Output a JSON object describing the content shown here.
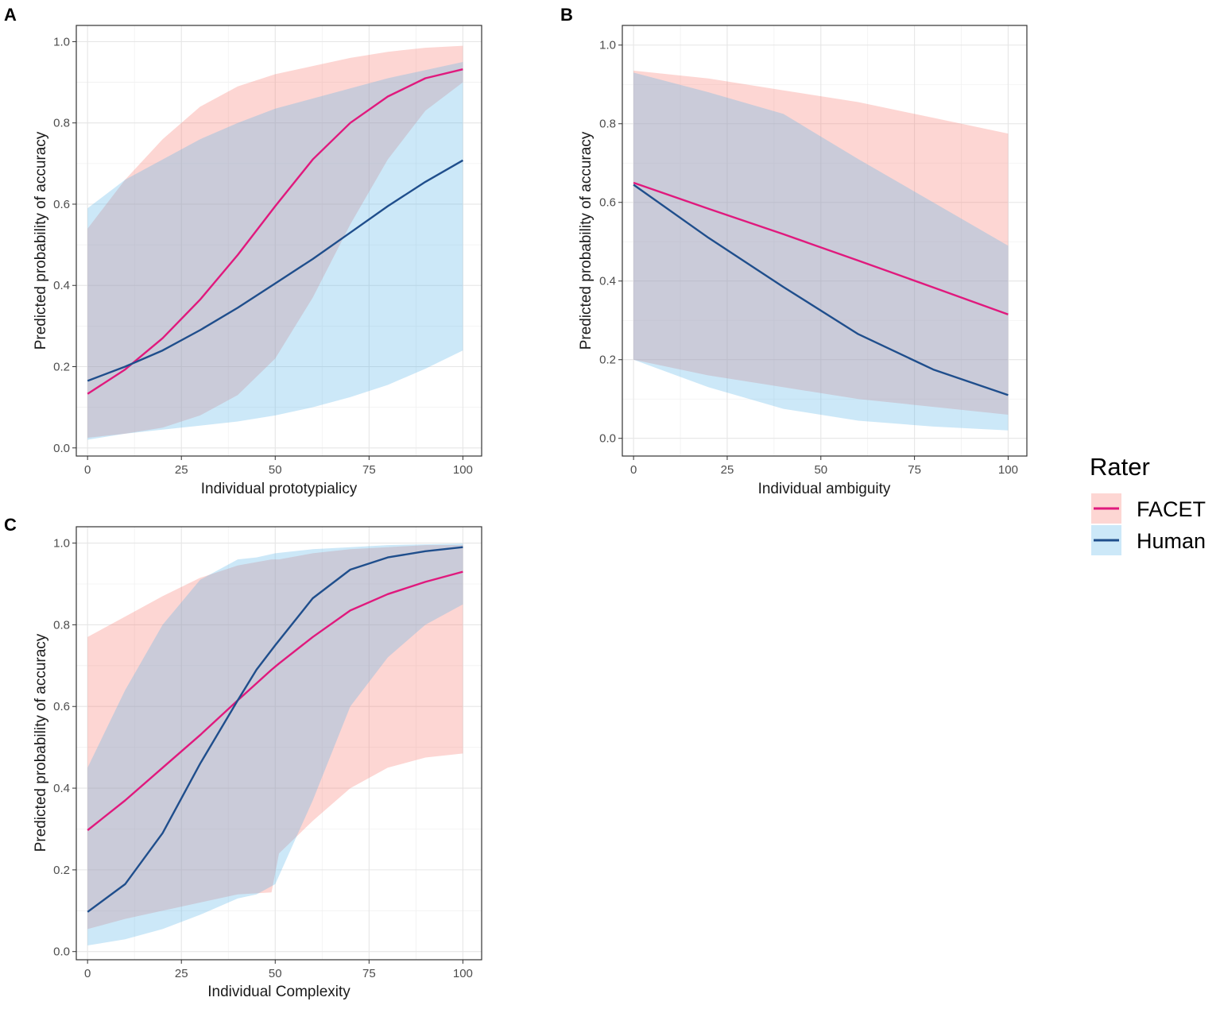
{
  "legend": {
    "title": "Rater",
    "items": [
      {
        "label": "FACET",
        "line": "#e0197d",
        "fill": "#f8766d"
      },
      {
        "label": "Human",
        "line": "#1f4e8c",
        "fill": "#56b4e9"
      }
    ]
  },
  "chart_data": [
    {
      "panel": "A",
      "type": "line",
      "xlabel": "Individual prototypialicy",
      "ylabel": "Predicted probability of accuracy",
      "xlim": [
        -3,
        105
      ],
      "ylim": [
        -0.02,
        1.04
      ],
      "xticks": [
        0,
        25,
        50,
        75,
        100
      ],
      "xtick_labels": [
        "0",
        "25",
        "50",
        "75",
        "100"
      ],
      "yticks": [
        0,
        0.2,
        0.4,
        0.6,
        0.8,
        1.0
      ],
      "ytick_labels": [
        "0.0",
        "0.2",
        "0.4",
        "0.6",
        "0.8",
        "1.0"
      ],
      "series": [
        {
          "name": "FACET",
          "x": [
            0,
            10,
            20,
            30,
            40,
            50,
            60,
            70,
            80,
            90,
            100
          ],
          "values": [
            0.133,
            0.193,
            0.27,
            0.365,
            0.475,
            0.595,
            0.71,
            0.8,
            0.865,
            0.91,
            0.932
          ],
          "lower": [
            0.025,
            0.035,
            0.05,
            0.08,
            0.13,
            0.22,
            0.37,
            0.55,
            0.71,
            0.83,
            0.9
          ],
          "upper": [
            0.54,
            0.66,
            0.76,
            0.84,
            0.89,
            0.92,
            0.94,
            0.96,
            0.975,
            0.985,
            0.99
          ]
        },
        {
          "name": "Human",
          "x": [
            0,
            10,
            20,
            30,
            40,
            50,
            60,
            70,
            80,
            90,
            100
          ],
          "values": [
            0.165,
            0.2,
            0.24,
            0.29,
            0.345,
            0.405,
            0.465,
            0.53,
            0.595,
            0.655,
            0.708
          ],
          "lower": [
            0.02,
            0.035,
            0.045,
            0.055,
            0.065,
            0.08,
            0.1,
            0.125,
            0.155,
            0.195,
            0.24
          ],
          "upper": [
            0.59,
            0.66,
            0.71,
            0.76,
            0.8,
            0.835,
            0.86,
            0.885,
            0.91,
            0.93,
            0.95
          ]
        }
      ]
    },
    {
      "panel": "B",
      "type": "line",
      "xlabel": "Individual ambiguity",
      "ylabel": "Predicted probability of accuracy",
      "xlim": [
        -3,
        105
      ],
      "ylim": [
        -0.045,
        1.05
      ],
      "xticks": [
        0,
        25,
        50,
        75,
        100
      ],
      "xtick_labels": [
        "0",
        "25",
        "50",
        "75",
        "100"
      ],
      "yticks": [
        0,
        0.2,
        0.4,
        0.6,
        0.8,
        1.0
      ],
      "ytick_labels": [
        "0.0",
        "0.2",
        "0.4",
        "0.6",
        "0.8",
        "1.0"
      ],
      "series": [
        {
          "name": "FACET",
          "x": [
            0,
            20,
            40,
            60,
            80,
            100
          ],
          "values": [
            0.65,
            0.584,
            0.519,
            0.452,
            0.384,
            0.315
          ],
          "lower": [
            0.2,
            0.16,
            0.13,
            0.1,
            0.08,
            0.06
          ],
          "upper": [
            0.935,
            0.915,
            0.885,
            0.855,
            0.815,
            0.775
          ]
        },
        {
          "name": "Human",
          "x": [
            0,
            20,
            40,
            60,
            80,
            100
          ],
          "values": [
            0.645,
            0.51,
            0.385,
            0.265,
            0.175,
            0.11
          ],
          "lower": [
            0.2,
            0.13,
            0.075,
            0.045,
            0.03,
            0.02
          ],
          "upper": [
            0.93,
            0.88,
            0.825,
            0.71,
            0.6,
            0.49
          ]
        }
      ]
    },
    {
      "panel": "C",
      "type": "line",
      "xlabel": "Individual Complexity",
      "ylabel": "Predicted probability of accuracy",
      "xlim": [
        -3,
        105
      ],
      "ylim": [
        -0.02,
        1.04
      ],
      "xticks": [
        0,
        25,
        50,
        75,
        100
      ],
      "xtick_labels": [
        "0",
        "25",
        "50",
        "75",
        "100"
      ],
      "yticks": [
        0,
        0.2,
        0.4,
        0.6,
        0.8,
        1.0
      ],
      "ytick_labels": [
        "0.0",
        "0.2",
        "0.4",
        "0.6",
        "0.8",
        "1.0"
      ],
      "series": [
        {
          "name": "FACET",
          "x": [
            0,
            10,
            20,
            30,
            40,
            49,
            51,
            60,
            70,
            80,
            90,
            100
          ],
          "values": [
            0.297,
            0.37,
            0.45,
            0.53,
            0.615,
            0.69,
            0.705,
            0.77,
            0.835,
            0.875,
            0.905,
            0.93
          ],
          "lower": [
            0.055,
            0.08,
            0.1,
            0.12,
            0.14,
            0.145,
            0.24,
            0.32,
            0.4,
            0.45,
            0.475,
            0.485
          ],
          "upper": [
            0.77,
            0.82,
            0.87,
            0.915,
            0.945,
            0.96,
            0.96,
            0.975,
            0.985,
            0.99,
            0.995,
            0.995
          ]
        },
        {
          "name": "Human",
          "x": [
            0,
            10,
            20,
            30,
            40,
            45,
            50,
            60,
            70,
            80,
            90,
            100
          ],
          "values": [
            0.097,
            0.165,
            0.29,
            0.46,
            0.615,
            0.69,
            0.75,
            0.865,
            0.935,
            0.965,
            0.98,
            0.99
          ],
          "lower": [
            0.015,
            0.03,
            0.055,
            0.09,
            0.13,
            0.14,
            0.165,
            0.37,
            0.6,
            0.72,
            0.8,
            0.85
          ],
          "upper": [
            0.45,
            0.64,
            0.8,
            0.91,
            0.96,
            0.965,
            0.975,
            0.985,
            0.99,
            0.995,
            0.997,
            0.999
          ]
        }
      ]
    }
  ]
}
